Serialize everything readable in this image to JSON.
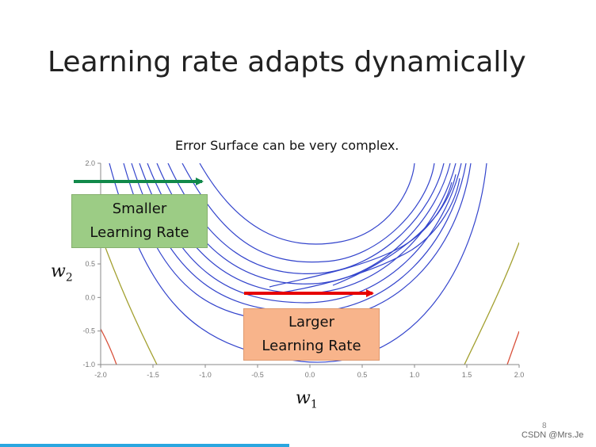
{
  "slide": {
    "title": "Learning rate adapts dynamically",
    "subtitle": "Error Surface can be very complex.",
    "page_number": "8",
    "watermark": "CSDN @Mrs.Je"
  },
  "boxes": {
    "smaller": {
      "line1": "Smaller",
      "line2": "Learning Rate",
      "color": "#9ccc85"
    },
    "larger": {
      "line1": "Larger",
      "line2": "Learning Rate",
      "color": "#f8b48b"
    }
  },
  "arrows": {
    "green": {
      "color": "#11894a"
    },
    "red": {
      "color": "#e60000"
    }
  },
  "chart_data": {
    "type": "contour",
    "xlabel": "w",
    "xlabel_sub": "1",
    "ylabel": "w",
    "ylabel_sub": "2",
    "xlim": [
      -2.0,
      2.0
    ],
    "ylim": [
      -1.0,
      2.0
    ],
    "x_ticks": [
      "-2.0",
      "-1.5",
      "-1.0",
      "-0.5",
      "0.0",
      "0.5",
      "1.0",
      "1.5",
      "2.0"
    ],
    "y_ticks": [
      "-1.0",
      "-0.5",
      "0.0",
      "0.5",
      "1.0",
      "1.5",
      "2.0"
    ],
    "contour_color": "#3344cc",
    "minimum_marker": {
      "x": 0.45,
      "y": -0.25,
      "color": "#e60000"
    }
  }
}
